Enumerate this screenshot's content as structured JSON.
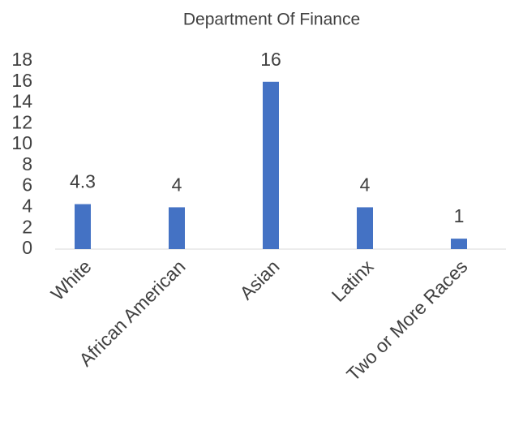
{
  "chart_data": {
    "type": "bar",
    "title": "Department Of Finance",
    "categories": [
      "White",
      "African American",
      "Asian",
      "Latinx",
      "Two or More Races"
    ],
    "values": [
      4.3,
      4,
      16,
      4,
      1
    ],
    "color": "#4472c4",
    "ylim": [
      0,
      18
    ],
    "yticks": [
      0,
      2,
      4,
      6,
      8,
      10,
      12,
      14,
      16,
      18
    ],
    "grid": false,
    "data_labels": true
  }
}
